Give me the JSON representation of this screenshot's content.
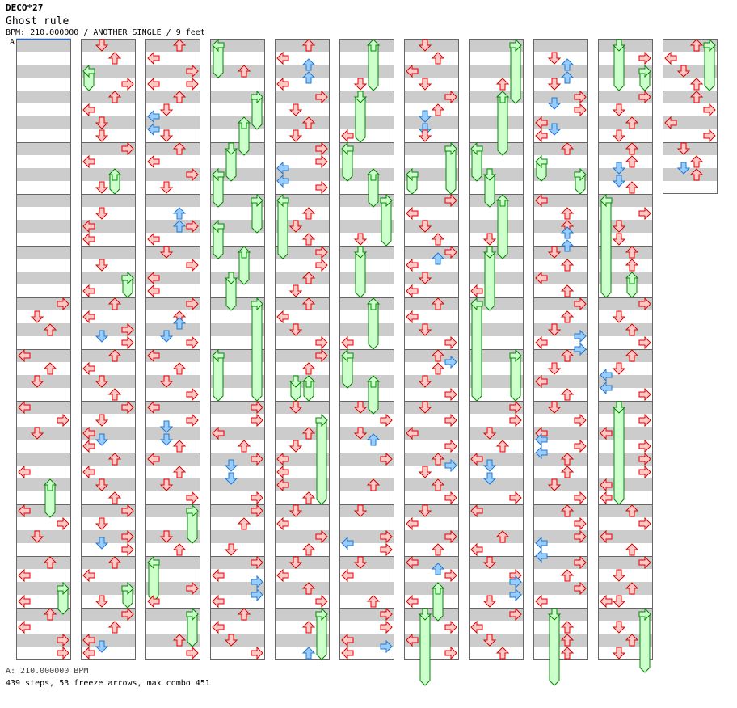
{
  "header": {
    "artist": "DECO*27",
    "title": "Ghost rule",
    "info": "BPM: 210.000000 / ANOTHER SINGLE / 9 feet",
    "bpm_marker": "A"
  },
  "footer": {
    "bpm": "A: 210.000000 BPM",
    "stats": "439 steps, 53 freeze arrows, max combo 451"
  },
  "colors": {
    "note": "#ffc8c8",
    "note_stroke": "#dd0000",
    "eighth": "#99ccff",
    "eighth_stroke": "#2277cc",
    "freeze": "#ccffcc",
    "freeze_stroke": "#008800",
    "stripe": "#cccccc",
    "border": "#666666",
    "bpm_line": "#1166dd"
  },
  "chart_data": {
    "type": "step-chart",
    "lanes": [
      "left",
      "down",
      "up",
      "right"
    ],
    "measures_per_column": 12,
    "eighths_per_measure": 8,
    "note_format": "position(eighth index in column) + lane(L/D/U/R) + optional b(blue/off-beat) + optional freeze length in eighths",
    "columns": [
      {
        "measures": 12,
        "notes": "40R,42D,44U,48L,50U,52D,56L,58R,60D,66L,68U4,72L,74R,76D,80U,82L,84R3,86L,88U,90L,92R,94R"
      },
      {
        "measures": 12,
        "notes": "0D,2U,4L2,6R,8U,10L,12D,14D,16R,18L,20U2,22D,26D,28L,30L,34D,36R2,38L,40U,42L,44R,45Db,46R,48U,50L,52D,54U,56R,58D,60L,61Db,62L,64U,66L,68D,70U,72R,74D,76R,77Db,78R,80U,82L,84R2,86D,88R,90U,92L,93Db,94L"
      },
      {
        "measures": 12,
        "notes": "0U,2L,4R,6L,6R,8U,10D,11Lb,13Lb,14D,16U,18L,20R,22D,26Ub,28Ub,28R,30L,32D,34R,36L,38L,40R,42U,43Ub,45Db,46R,48L,50U,52D,54R,56L,58R,59Db,61Db,62U,64L,66U,68D,70R,72R4,76D,78U,80L5,84R,86L,88R4,92U,94R"
      },
      {
        "measures": 12,
        "notes": "0L4,4U,8R4,12U4,16D4,20L4,24R4,28L4,32U4,36D4,40R14,48L6,56R,58R,60L,62U,64R,65Db,67Db,70R,72R,74U,78D,80R,82L,83Rb,85Rb,86L,88U,90L,92D,94R"
      },
      {
        "measures": 12,
        "notes": "0U,2L,3Ub,5Ub,6L,8R,10D,12U,14D,16R,18R,19Lb,21Lb,22R,24L8,26U,28D,30U,32R,34R,36U,38D,40U,42L,44D,46R,48R,50U,52D2,52U2,56D,58R12,60U,62D,64L,66L,68L,70U,72D,74L,76R,78U,80D,82L,84U,86R,88R6,90U,94Ub"
      },
      {
        "measures": 12,
        "notes": "0U6,6D,8D6,14L,16L4,20U4,24R6,30D,32D6,40U6,46L,48L4,52U4,56D,58R,60D,61Ub,64R,68U,72D,76R,77Lb,78R,80D,82L,86U,88R,90R,92L,93Rb,94L"
      },
      {
        "measures": 12,
        "notes": "0D,2U,4L,6D,8R,10U,11Db,13Db,14D,16R6,20L2,24R,26L,28D,30U,32R,33Ub,34L,36D,38L,40U,42L,44D,46R,48U,49Rb,50U,52D,54R,56D,58R,60L,62R,64U,65Rb,66D,68U,70R,72D,74L,76R,78U,80L,81Ub,82R,84U4,86L,88D10,90R,92L,94R"
      },
      {
        "measures": 12,
        "notes": "0R8,6U,8U8,16L4,20D4,24U8,30D,32D8,38L,40L14,48R6,56R,58R,60D,62U,64L,65Db,67Db,70R,72L,76U,78L,80D,82R,83Rb,85Rb,86D,88R,90L,92D,94U"
      },
      {
        "measures": 12,
        "notes": "2D,3Ub,5Ub,6D,8R,9Db,10R,12L,13Db,14L,16U,18L2,20R2,24L,26U,28U,29Ub,31Ub,32D,34U,36L,38U,40R,42U,44D,45Rb,46L,47Rb,48U,50D,52L,54U,56D,58R,60L,61Lb,62R,63Lb,64U,66U,68D,70R,72U,74R,76R,77Lb,79Lb,80R,82U,84R,86L,88D10,90U,92U,94U"
      },
      {
        "measures": 12,
        "notes": "0D6,2R,4R2,8R,10D,12U,14D,16U,18U,19Db,21Db,22U,24L14,26R,28D,30D,32U,34U,36U2,40R,42D,44U,46R,48U,50D,51Lb,53Lb,54R,56D14,58R,60L,62R,64R,66R,68L,70L,72U,74R,76L,78U,80R,82D,84U,86D,86L,88R8,90D,92U,94D"
      },
      {
        "measures": 3,
        "notes": "0U,0R6,2L,4D,6U,8U,10R,12L,14R,16D,18U,19Db,20U"
      }
    ]
  }
}
